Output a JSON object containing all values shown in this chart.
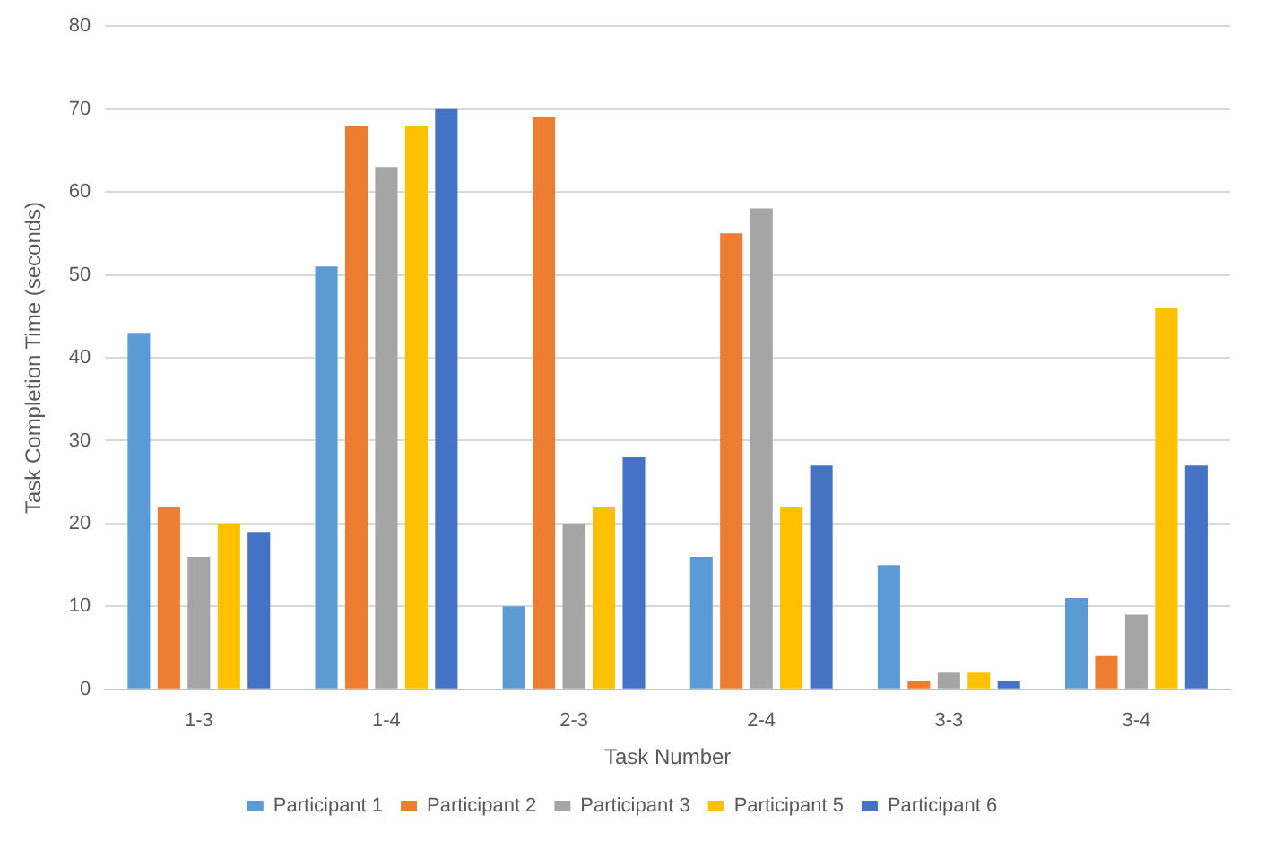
{
  "chart_data": {
    "type": "bar",
    "xlabel": "Task Number",
    "ylabel": "Task Completion Time (seconds)",
    "categories": [
      "1-3",
      "1-4",
      "2-3",
      "2-4",
      "3-3",
      "3-4"
    ],
    "series": [
      {
        "name": "Participant 1",
        "color": "#5b9bd5",
        "values": [
          43,
          51,
          10,
          16,
          15,
          11
        ]
      },
      {
        "name": "Participant 2",
        "color": "#ed7d31",
        "values": [
          22,
          68,
          69,
          55,
          1,
          4
        ]
      },
      {
        "name": "Participant 3",
        "color": "#a5a5a5",
        "values": [
          16,
          63,
          20,
          58,
          2,
          9
        ]
      },
      {
        "name": "Participant 5",
        "color": "#ffc000",
        "values": [
          20,
          68,
          22,
          22,
          2,
          46
        ]
      },
      {
        "name": "Participant 6",
        "color": "#4472c4",
        "values": [
          19,
          70,
          28,
          27,
          1,
          27
        ]
      }
    ],
    "ylim": [
      0,
      80
    ],
    "yticks": [
      0,
      10,
      20,
      30,
      40,
      50,
      60,
      70,
      80
    ],
    "grid": "y",
    "legend": "bottom"
  }
}
